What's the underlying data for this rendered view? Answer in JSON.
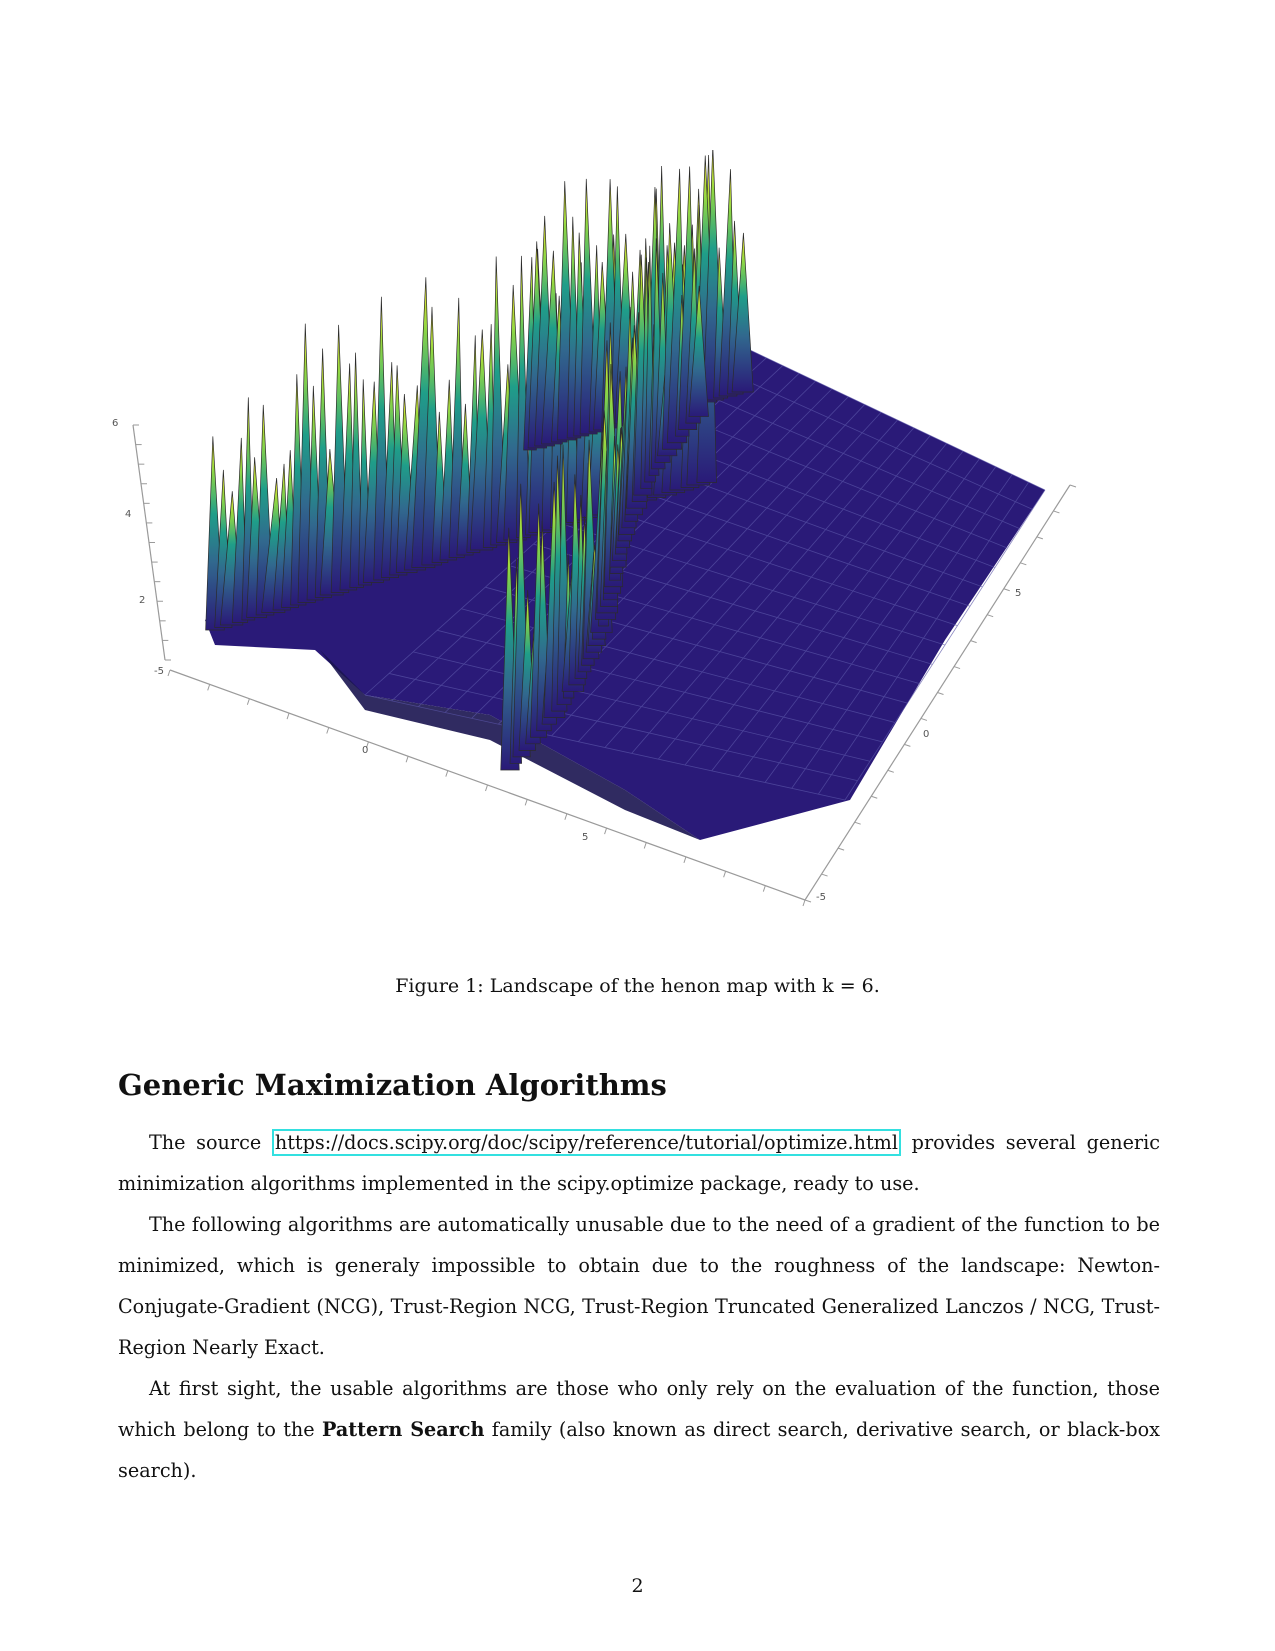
{
  "figure": {
    "axes": {
      "z_ticks": [
        "6",
        "4",
        "2"
      ],
      "x_ticks": [
        "-5",
        "0",
        "5"
      ],
      "y_ticks": [
        "5",
        "0",
        "-5"
      ]
    },
    "colors": {
      "low": "#2a1a78",
      "mid": "#1f9e89",
      "high": "#fde725"
    }
  },
  "caption": "Figure 1: Landscape of the henon map with k = 6.",
  "section": {
    "title": "Generic Maximization Algorithms"
  },
  "paragraphs": {
    "p1": {
      "before": "The source ",
      "link": "https://docs.scipy.org/doc/scipy/reference/tutorial/optimize.html",
      "after": " provides several generic minimization algorithms implemented in the scipy.optimize package, ready to use."
    },
    "p2": "The following algorithms are automatically unusable due to the need of a gradient of the function to be minimized, which is generaly impossible to obtain due to the roughness of the landscape: Newton-Conjugate-Gradient (NCG), Trust-Region NCG, Trust-Region Truncated Generalized Lanczos / NCG, Trust-Region Nearly Exact.",
    "p3": {
      "before": "At first sight, the usable algorithms are those who only rely on the evaluation of the function, those which belong to the ",
      "bold": "Pattern Search",
      "after": " family (also known as direct search, derivative search, or black-box search)."
    }
  },
  "page_number": "2"
}
